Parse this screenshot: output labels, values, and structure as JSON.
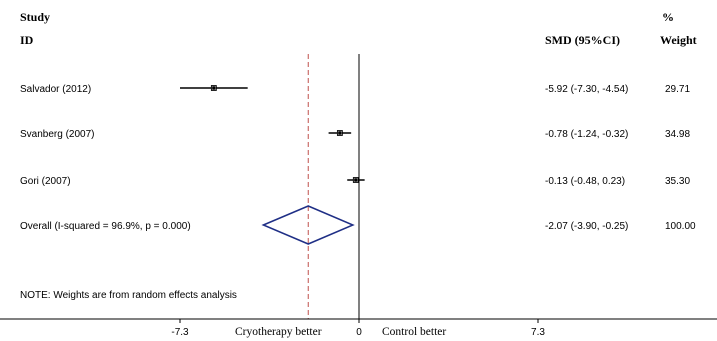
{
  "header": {
    "study_line1": "Study",
    "study_line2": "ID",
    "effect": "SMD (95%CI)",
    "weight_line1": "%",
    "weight_line2": "Weight"
  },
  "chart_data": {
    "type": "forest",
    "xlim": [
      -7.3,
      7.3
    ],
    "xticks": [
      {
        "value": -7.3,
        "label": "-7.3"
      },
      {
        "value": 0,
        "label": "0"
      },
      {
        "value": 7.3,
        "label": "7.3"
      }
    ],
    "left_label": "Cryotherapy better",
    "right_label": "Control better",
    "null_line": 0,
    "overall_line": -2.07,
    "studies": [
      {
        "id": "Salvador (2012)",
        "est": -5.92,
        "lo": -7.3,
        "hi": -4.54,
        "ci_text": "-5.92 (-7.30, -4.54)",
        "weight": "29.71"
      },
      {
        "id": "Svanberg (2007)",
        "est": -0.78,
        "lo": -1.24,
        "hi": -0.32,
        "ci_text": "-0.78 (-1.24, -0.32)",
        "weight": "34.98"
      },
      {
        "id": "Gori (2007)",
        "est": -0.13,
        "lo": -0.48,
        "hi": 0.23,
        "ci_text": "-0.13 (-0.48, 0.23)",
        "weight": "35.30"
      }
    ],
    "overall": {
      "id": "Overall  (I-squared = 96.9%, p = 0.000)",
      "est": -2.07,
      "lo": -3.9,
      "hi": -0.25,
      "ci_text": "-2.07 (-3.90, -0.25)",
      "weight": "100.00"
    }
  },
  "note": "NOTE: Weights are from random effects analysis"
}
